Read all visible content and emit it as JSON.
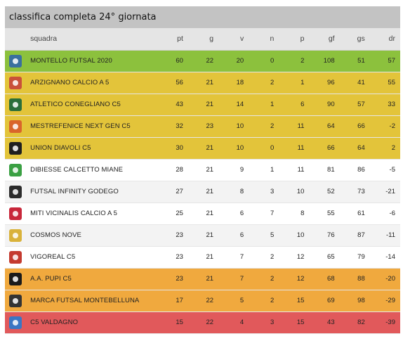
{
  "title": "classifica completa 24° giornata",
  "columns": {
    "squadra": "squadra",
    "pt": "pt",
    "g": "g",
    "v": "v",
    "n": "n",
    "p": "p",
    "gf": "gf",
    "gs": "gs",
    "dr": "dr"
  },
  "colors": {
    "green": "#8cc13d",
    "yellow": "#e3c43a",
    "orange": "#f0a93e",
    "red": "#e1595b",
    "header": "#c3c3c3"
  },
  "rows": [
    {
      "name": "MONTELLO FUTSAL 2020",
      "pt": "60",
      "g": "22",
      "v": "20",
      "n": "0",
      "p": "2",
      "gf": "108",
      "gs": "51",
      "dr": "57",
      "zone": "green",
      "logo_color": "#3a6f9e",
      "logo_icon": "shield-icon"
    },
    {
      "name": "ARZIGNANO CALCIO A 5",
      "pt": "56",
      "g": "21",
      "v": "18",
      "n": "2",
      "p": "1",
      "gf": "96",
      "gs": "41",
      "dr": "55",
      "zone": "yellow",
      "logo_color": "#c9503a",
      "logo_icon": "griffin-crest-icon"
    },
    {
      "name": "ATLETICO CONEGLIANO C5",
      "pt": "43",
      "g": "21",
      "v": "14",
      "n": "1",
      "p": "6",
      "gf": "90",
      "gs": "57",
      "dr": "33",
      "zone": "yellow",
      "logo_color": "#2a6e3a",
      "logo_icon": "round-crest-icon"
    },
    {
      "name": "MESTREFENICE NEXT GEN C5",
      "pt": "32",
      "g": "23",
      "v": "10",
      "n": "2",
      "p": "11",
      "gf": "64",
      "gs": "66",
      "dr": "-2",
      "zone": "yellow",
      "logo_color": "#d9652b",
      "logo_icon": "phoenix-crest-icon"
    },
    {
      "name": "UNION DIAVOLI C5",
      "pt": "30",
      "g": "21",
      "v": "10",
      "n": "0",
      "p": "11",
      "gf": "66",
      "gs": "64",
      "dr": "2",
      "zone": "yellow",
      "logo_color": "#1f1f1f",
      "logo_icon": "devil-crest-icon"
    },
    {
      "name": "DIBIESSE CALCETTO MIANE",
      "pt": "28",
      "g": "21",
      "v": "9",
      "n": "1",
      "p": "11",
      "gf": "81",
      "gs": "86",
      "dr": "-5",
      "zone": "white",
      "logo_color": "#3aa043",
      "logo_icon": "green-crest-icon"
    },
    {
      "name": "FUTSAL INFINITY GODEGO",
      "pt": "27",
      "g": "21",
      "v": "8",
      "n": "3",
      "p": "10",
      "gf": "52",
      "gs": "73",
      "dr": "-21",
      "zone": "grey",
      "logo_color": "#2b2b2b",
      "logo_icon": "letter-g-crest-icon"
    },
    {
      "name": "MITI VICINALIS CALCIO A 5",
      "pt": "25",
      "g": "21",
      "v": "6",
      "n": "7",
      "p": "8",
      "gf": "55",
      "gs": "61",
      "dr": "-6",
      "zone": "white",
      "logo_color": "#c8273a",
      "logo_icon": "red-shield-icon"
    },
    {
      "name": "COSMOS NOVE",
      "pt": "23",
      "g": "21",
      "v": "6",
      "n": "5",
      "p": "10",
      "gf": "76",
      "gs": "87",
      "dr": "-11",
      "zone": "grey",
      "logo_color": "#d9b23a",
      "logo_icon": "cosmos-crest-icon"
    },
    {
      "name": "VIGOREAL C5",
      "pt": "23",
      "g": "21",
      "v": "7",
      "n": "2",
      "p": "12",
      "gf": "65",
      "gs": "79",
      "dr": "-14",
      "zone": "white",
      "logo_color": "#c43a2f",
      "logo_icon": "red-blue-crest-icon"
    },
    {
      "name": "A.A. PUPI C5",
      "pt": "23",
      "g": "21",
      "v": "7",
      "n": "2",
      "p": "12",
      "gf": "68",
      "gs": "88",
      "dr": "-20",
      "zone": "orange",
      "logo_color": "#1a1a1a",
      "logo_icon": "black-crest-icon"
    },
    {
      "name": "MARCA FUTSAL MONTEBELLUNA",
      "pt": "17",
      "g": "22",
      "v": "5",
      "n": "2",
      "p": "15",
      "gf": "69",
      "gs": "98",
      "dr": "-29",
      "zone": "orange",
      "logo_color": "#333333",
      "logo_icon": "black-white-crest-icon"
    },
    {
      "name": "C5 VALDAGNO",
      "pt": "15",
      "g": "22",
      "v": "4",
      "n": "3",
      "p": "15",
      "gf": "43",
      "gs": "82",
      "dr": "-39",
      "zone": "red",
      "logo_color": "#3a76c4",
      "logo_icon": "letter-v-crest-icon"
    }
  ]
}
